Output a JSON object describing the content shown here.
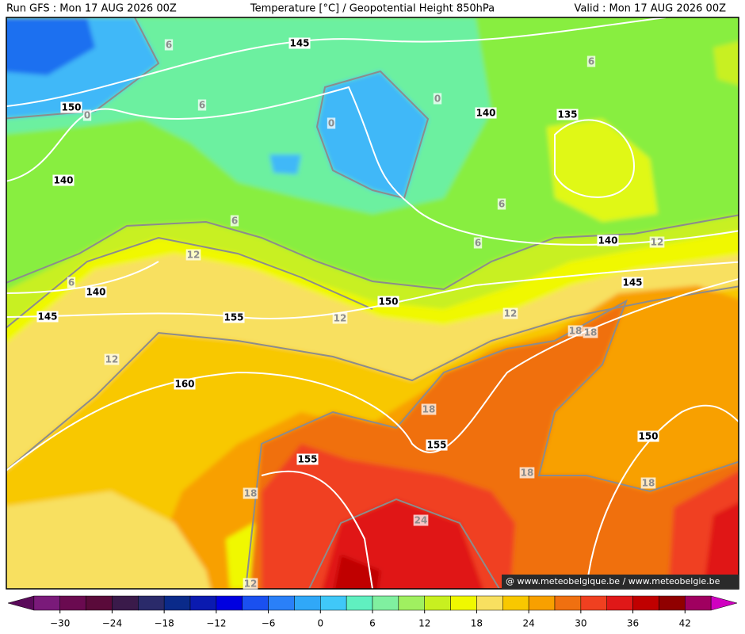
{
  "header": {
    "run": "Run GFS : Mon 17 AUG 2026 00Z",
    "title": "Temperature [°C] / Geopotential Height 850hPa",
    "valid": "Valid : Mon 17 AUG 2026 00Z"
  },
  "height_labels": [
    "145",
    "150",
    "140",
    "140",
    "145",
    "155",
    "160",
    "155",
    "155",
    "150",
    "140",
    "135",
    "140",
    "145",
    "150"
  ],
  "temperature_labels": [
    "6",
    "0",
    "6",
    "0",
    "0",
    "6",
    "6",
    "12",
    "6",
    "12",
    "6",
    "6",
    "12",
    "12",
    "12",
    "18",
    "18",
    "18",
    "18",
    "18",
    "18",
    "24",
    "12"
  ],
  "colorbar": {
    "colors": [
      "#5a0a5a",
      "#7a1a7a",
      "#6a0a50",
      "#5a0a3a",
      "#3a1a4a",
      "#2a2a6a",
      "#0a2a8a",
      "#0a1ab0",
      "#0000e0",
      "#1a50f0",
      "#2a80f8",
      "#30a8f8",
      "#40c8f8",
      "#60f0c0",
      "#80f0a0",
      "#a0f060",
      "#c8f020",
      "#f0f800",
      "#f8e060",
      "#f8c800",
      "#f8a000",
      "#f07010",
      "#f04020",
      "#e01818",
      "#c00000",
      "#900000",
      "#a00060",
      "#d000c0"
    ],
    "ticks": [
      "−30",
      "−24",
      "−18",
      "−12",
      "−6",
      "0",
      "6",
      "12",
      "18",
      "24",
      "30",
      "36",
      "42"
    ]
  },
  "watermark": "@ www.meteobelgique.be / www.meteobelgie.be"
}
